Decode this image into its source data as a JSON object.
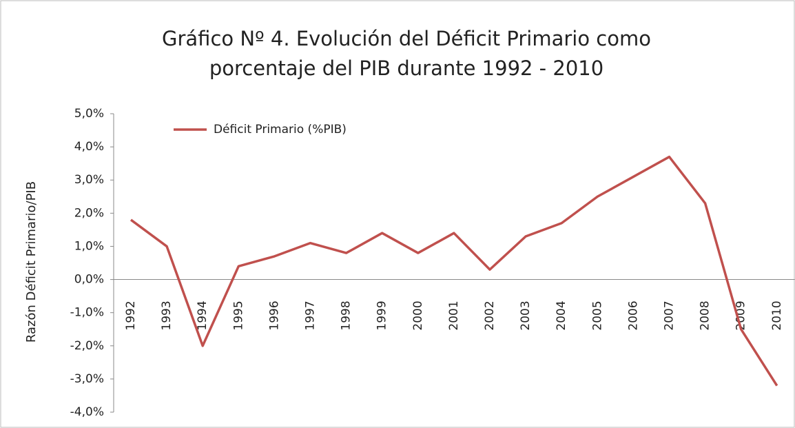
{
  "chart_data": {
    "type": "line",
    "title": [
      "Gráfico Nº 4. Evolución del Déficit Primario como",
      "porcentaje del PIB durante  1992 - 2010"
    ],
    "y_label": "Razón Déficit Primario/PIB",
    "categories": [
      "1992",
      "1993",
      "1994",
      "1995",
      "1996",
      "1997",
      "1998",
      "1999",
      "2000",
      "2001",
      "2002",
      "2003",
      "2004",
      "2005",
      "2006",
      "2007",
      "2008",
      "2009",
      "2010"
    ],
    "series": [
      {
        "name": "Déficit Primario (%PIB)",
        "color": "#c0504d",
        "values": [
          1.8,
          1.0,
          -2.0,
          0.4,
          0.7,
          1.1,
          0.8,
          1.4,
          0.8,
          1.4,
          0.3,
          1.3,
          1.7,
          2.5,
          3.1,
          3.7,
          2.3,
          -1.5,
          -3.2
        ]
      }
    ],
    "ylim": [
      -4,
      5
    ],
    "yticks": [
      {
        "value": -4,
        "label": "-4,0%"
      },
      {
        "value": -3,
        "label": "-3,0%"
      },
      {
        "value": -2,
        "label": "-2,0%"
      },
      {
        "value": -1,
        "label": "-1,0%"
      },
      {
        "value": 0,
        "label": "0,0%"
      },
      {
        "value": 1,
        "label": "1,0%"
      },
      {
        "value": 2,
        "label": "2,0%"
      },
      {
        "value": 3,
        "label": "3,0%"
      },
      {
        "value": 4,
        "label": "4,0%"
      },
      {
        "value": 5,
        "label": "5,0%"
      }
    ],
    "grid": false,
    "legend": "top-left"
  }
}
